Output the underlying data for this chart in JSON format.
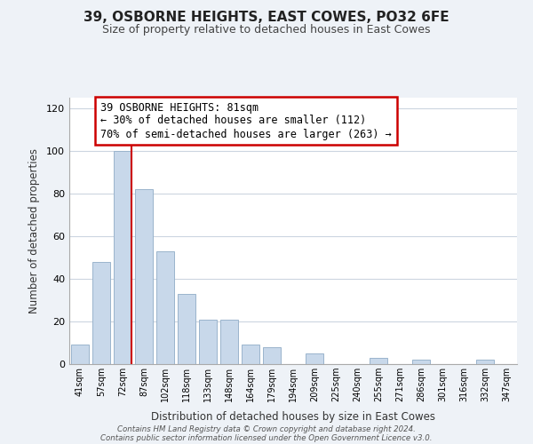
{
  "title": "39, OSBORNE HEIGHTS, EAST COWES, PO32 6FE",
  "subtitle": "Size of property relative to detached houses in East Cowes",
  "xlabel": "Distribution of detached houses by size in East Cowes",
  "ylabel": "Number of detached properties",
  "bar_color": "#c8d8ea",
  "bar_edge_color": "#9ab4cc",
  "categories": [
    "41sqm",
    "57sqm",
    "72sqm",
    "87sqm",
    "102sqm",
    "118sqm",
    "133sqm",
    "148sqm",
    "164sqm",
    "179sqm",
    "194sqm",
    "209sqm",
    "225sqm",
    "240sqm",
    "255sqm",
    "271sqm",
    "286sqm",
    "301sqm",
    "316sqm",
    "332sqm",
    "347sqm"
  ],
  "values": [
    9,
    48,
    100,
    82,
    53,
    33,
    21,
    21,
    9,
    8,
    0,
    5,
    0,
    0,
    3,
    0,
    2,
    0,
    0,
    2,
    0
  ],
  "ylim": [
    0,
    125
  ],
  "yticks": [
    0,
    20,
    40,
    60,
    80,
    100,
    120
  ],
  "property_line_color": "#cc0000",
  "annotation_title": "39 OSBORNE HEIGHTS: 81sqm",
  "annotation_line1": "← 30% of detached houses are smaller (112)",
  "annotation_line2": "70% of semi-detached houses are larger (263) →",
  "annotation_box_color": "#ffffff",
  "annotation_box_edge": "#cc0000",
  "footer1": "Contains HM Land Registry data © Crown copyright and database right 2024.",
  "footer2": "Contains public sector information licensed under the Open Government Licence v3.0.",
  "background_color": "#eef2f7",
  "plot_bg_color": "#ffffff",
  "grid_color": "#ccd5e0"
}
